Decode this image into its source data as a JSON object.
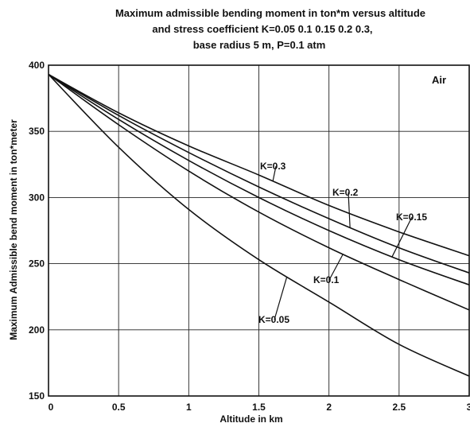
{
  "chart_data": {
    "type": "line",
    "title_lines": [
      "Maximum admissible bending moment in ton*m versus altitude",
      "and stress coefficient K=0.05  0.1  0.15  0.2  0.3,",
      "base radius 5 m, P=0.1 atm"
    ],
    "xlabel": "Altitude in km",
    "ylabel": "Maximum Admissible bend moment in ton*meter",
    "xlim": [
      0,
      3
    ],
    "ylim": [
      150,
      400
    ],
    "x_ticks": [
      0,
      0.5,
      1,
      1.5,
      2,
      2.5,
      3
    ],
    "x_tick_labels": [
      "0",
      "0.5",
      "1",
      "1.5",
      "2",
      "2.5",
      "3"
    ],
    "y_ticks": [
      150,
      200,
      250,
      300,
      350,
      400
    ],
    "y_tick_labels": [
      "150",
      "200",
      "250",
      "300",
      "350",
      "400"
    ],
    "grid": true,
    "annotation": "Air",
    "x": [
      0,
      0.5,
      1,
      1.5,
      2,
      2.5,
      3
    ],
    "series": [
      {
        "name": "K=0.05",
        "values": [
          393,
          338,
          291,
          253,
          221,
          189,
          165
        ]
      },
      {
        "name": "K=0.1",
        "values": [
          393,
          355,
          320,
          289,
          262,
          238,
          215
        ]
      },
      {
        "name": "K=0.15",
        "values": [
          393,
          359,
          328,
          300,
          275,
          253,
          234
        ]
      },
      {
        "name": "K=0.2",
        "values": [
          393,
          362,
          334,
          308,
          284,
          262,
          243
        ]
      },
      {
        "name": "K=0.3",
        "values": [
          393,
          364,
          339,
          317,
          294,
          274,
          256
        ]
      }
    ]
  }
}
